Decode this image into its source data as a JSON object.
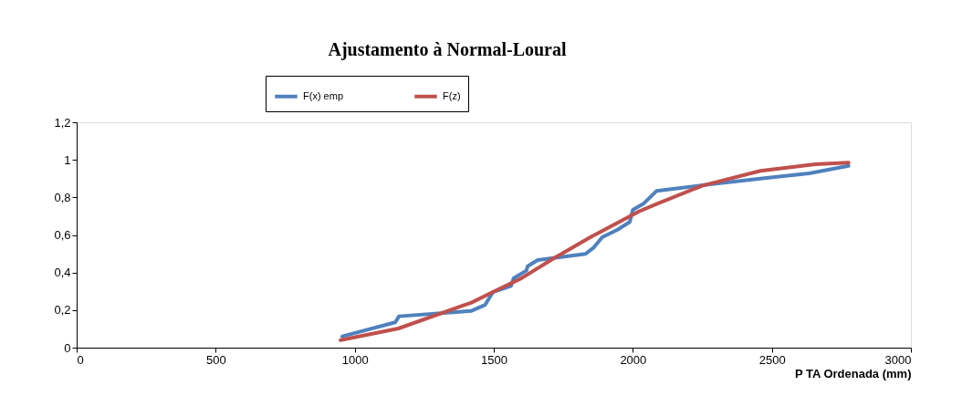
{
  "chart_data": {
    "type": "line",
    "title": "Ajustamento à Normal-Loural",
    "xlabel": "P TA Ordenada (mm)",
    "series": [
      {
        "name": "F(x) emp",
        "color": "#4f81bd",
        "x": [
          955,
          1146,
          1159,
          1420,
          1469,
          1497,
          1562,
          1571,
          1617,
          1622,
          1658,
          1830,
          1858,
          1890,
          1945,
          1989,
          2000,
          2038,
          2085,
          2284,
          2481,
          2634,
          2776
        ],
        "values": [
          0.06,
          0.135,
          0.167,
          0.196,
          0.228,
          0.296,
          0.329,
          0.369,
          0.41,
          0.434,
          0.466,
          0.499,
          0.531,
          0.588,
          0.628,
          0.669,
          0.734,
          0.766,
          0.834,
          0.871,
          0.904,
          0.928,
          0.968
        ]
      },
      {
        "name": "F(z)",
        "color": "#c0504d",
        "x": [
          949,
          1157,
          1420,
          1497,
          1600,
          1715,
          1850,
          2022,
          2087,
          2251,
          2459,
          2656,
          2776
        ],
        "values": [
          0.04,
          0.102,
          0.24,
          0.296,
          0.37,
          0.475,
          0.59,
          0.725,
          0.766,
          0.863,
          0.941,
          0.977,
          0.985
        ]
      }
    ],
    "xlim": [
      0,
      3000
    ],
    "xticks": [
      0,
      500,
      1000,
      1500,
      2000,
      2500,
      3000
    ],
    "ylim": [
      0,
      1.2
    ],
    "yticks": [
      0,
      {
        "value": 0.2,
        "label": "0,2"
      },
      {
        "value": 0.4,
        "label": "0,4"
      },
      {
        "value": 0.6,
        "label": "0,6"
      },
      {
        "value": 0.8,
        "label": "0,8"
      },
      1,
      {
        "value": 1.2,
        "label": "1,2"
      }
    ],
    "legend": "top",
    "grid": false,
    "line_style": "solid",
    "marker": "none"
  }
}
